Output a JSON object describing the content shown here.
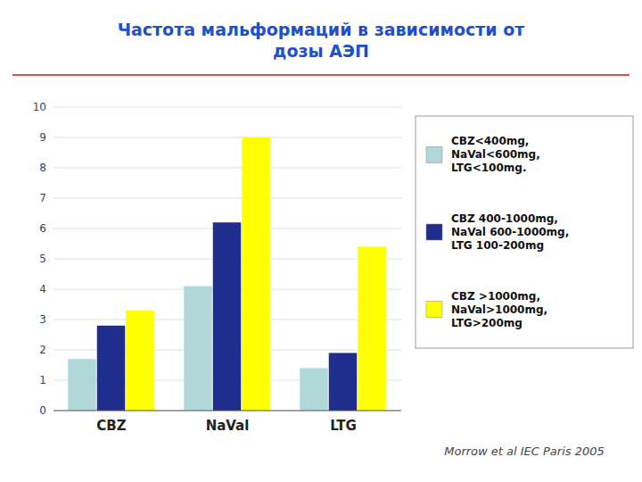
{
  "chart_data": {
    "type": "bar",
    "title": "Частота мальформаций в зависимости от\nдозы АЭП",
    "categories": [
      "CBZ",
      "NaVal",
      "LTG"
    ],
    "series": [
      {
        "name": "CBZ<400mg,\nNaVal<600mg,\nLTG<100mg.",
        "color": "#B0D8D8",
        "values": [
          1.7,
          4.1,
          1.4
        ]
      },
      {
        "name": "CBZ 400-1000mg,\nNaVal 600-1000mg,\nLTG 100-200mg",
        "color": "#1F2D8C",
        "values": [
          2.8,
          6.2,
          1.9
        ]
      },
      {
        "name": "CBZ >1000mg,\nNaVal>1000mg,\nLTG>200mg",
        "color": "#FFFF00",
        "values": [
          3.3,
          9.0,
          5.4
        ]
      }
    ],
    "ylim": [
      0,
      10
    ],
    "yticks": [
      0,
      1,
      2,
      3,
      4,
      5,
      6,
      7,
      8,
      9,
      10
    ],
    "grid": true,
    "legend": "right",
    "annotations": [
      "Morrow et al IEC Paris 2005"
    ]
  }
}
